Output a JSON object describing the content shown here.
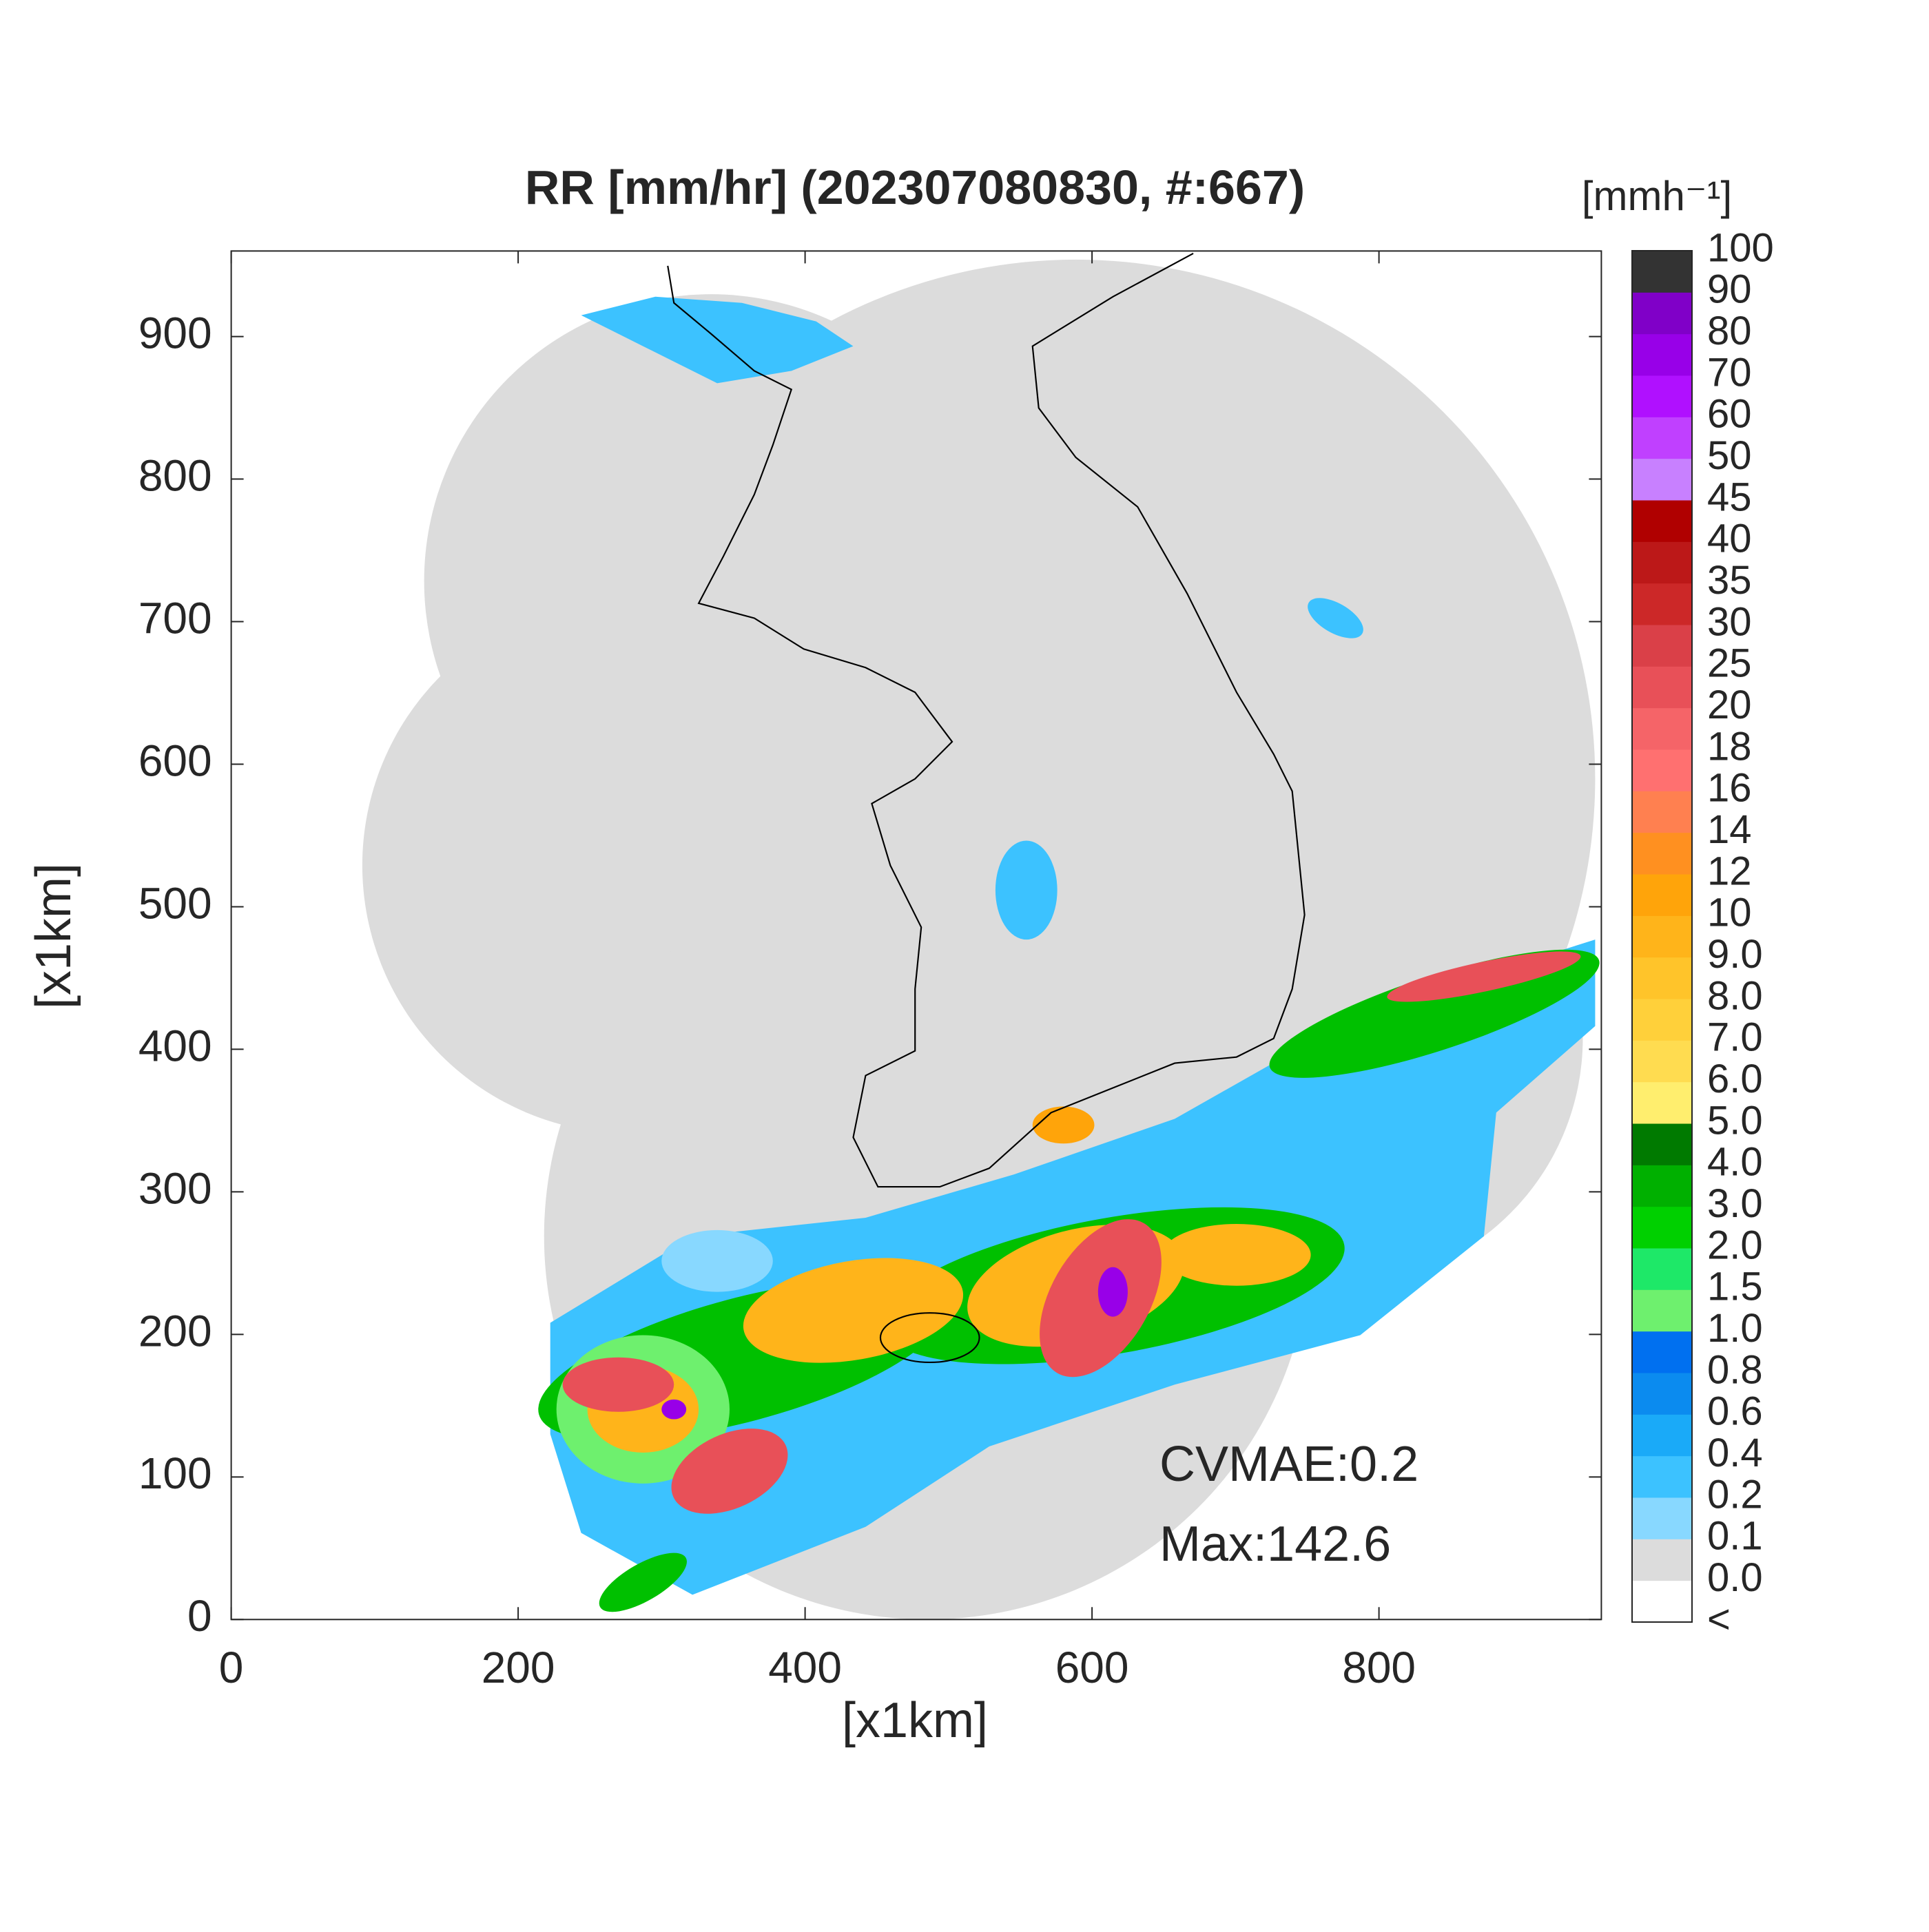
{
  "chart_data": {
    "type": "radar-map",
    "title": "RR [mm/hr] (202307080830, #:667)",
    "xlabel": "[x1km]",
    "ylabel": "[x1km]",
    "xlim": [
      0,
      955
    ],
    "ylim": [
      0,
      960
    ],
    "xticks": [
      0,
      200,
      400,
      600,
      800
    ],
    "yticks": [
      0,
      100,
      200,
      300,
      400,
      500,
      600,
      700,
      800,
      900
    ],
    "annotations": [
      "CVMAE:0.2",
      "Max:142.6"
    ],
    "colorbar": {
      "label": "[mmh⁻¹]",
      "labels": [
        "<",
        "0.0",
        "0.1",
        "0.2",
        "0.4",
        "0.6",
        "0.8",
        "1.0",
        "1.5",
        "2.0",
        "3.0",
        "4.0",
        "5.0",
        "6.0",
        "7.0",
        "8.0",
        "9.0",
        "10",
        "12",
        "14",
        "16",
        "18",
        "20",
        "25",
        "30",
        "35",
        "40",
        "45",
        "50",
        "60",
        "70",
        "80",
        "90",
        "100"
      ],
      "colors": [
        "#ffffff",
        "#dcdcdc",
        "#88d8ff",
        "#3cc2ff",
        "#1aaaf8",
        "#0b8bef",
        "#0070f0",
        "#6ef06e",
        "#1ee868",
        "#00d000",
        "#00b000",
        "#007a00",
        "#ffee6e",
        "#ffdc50",
        "#ffd03a",
        "#ffc42a",
        "#ffb41a",
        "#ffa40a",
        "#ff9020",
        "#ff8050",
        "#ff7070",
        "#f56468",
        "#e85058",
        "#da4048",
        "#cc2828",
        "#bc1818",
        "#b00000",
        "#c880ff",
        "#c040ff",
        "#b010ff",
        "#9800e8",
        "#8000c8",
        "#333333"
      ]
    }
  }
}
